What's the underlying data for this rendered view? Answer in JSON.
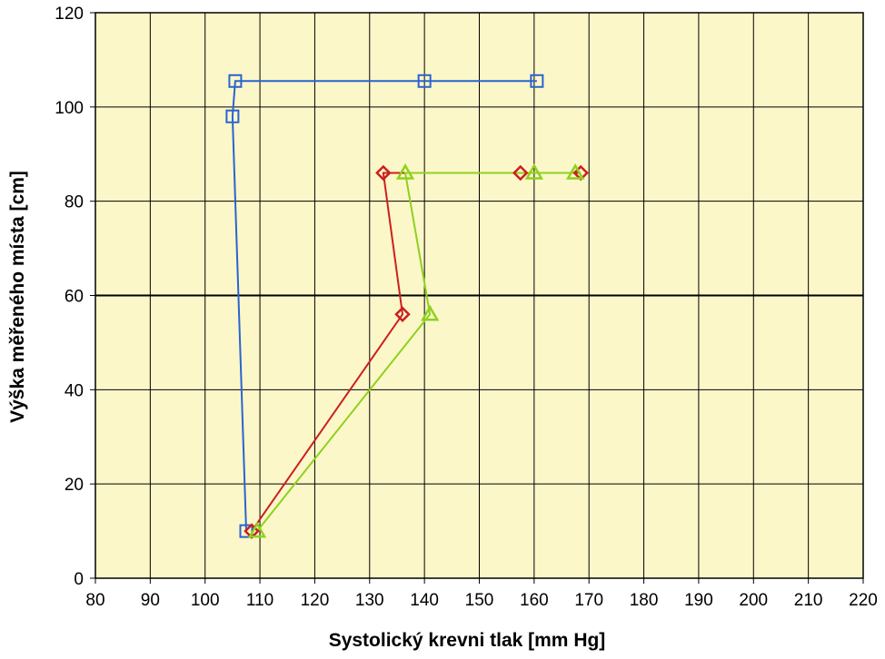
{
  "chart_data": {
    "type": "scatter",
    "title": "",
    "xlabel": "Systolický krevni tlak [mm Hg]",
    "ylabel": "Výška měřeného místa [cm]",
    "xlim": [
      80,
      220
    ],
    "ylim": [
      0,
      120
    ],
    "x_ticks": [
      "80",
      "90",
      "100",
      "110",
      "120",
      "130",
      "140",
      "150",
      "160",
      "170",
      "180",
      "190",
      "200",
      "210",
      "220"
    ],
    "y_ticks": [
      "0",
      "20",
      "40",
      "60",
      "80",
      "100",
      "120"
    ],
    "grid": true,
    "reference_line_y": 60,
    "plot_background": "#fbf7c8",
    "series": [
      {
        "color": "#2b63d1",
        "marker": "square",
        "points": [
          [
            160.5,
            105.5
          ],
          [
            140,
            105.5
          ],
          [
            105.5,
            105.5
          ],
          [
            105,
            98
          ],
          [
            107.5,
            10
          ]
        ]
      },
      {
        "color": "#cc1f1f",
        "marker": "diamond",
        "points": [
          [
            168.5,
            86
          ],
          [
            157.5,
            86
          ],
          [
            132.5,
            86
          ],
          [
            136,
            56
          ],
          [
            108.5,
            10
          ]
        ]
      },
      {
        "color": "#8fd11f",
        "marker": "triangle",
        "points": [
          [
            167.5,
            86
          ],
          [
            160,
            86
          ],
          [
            136.5,
            86
          ],
          [
            141,
            56
          ],
          [
            109.5,
            10
          ]
        ]
      }
    ]
  }
}
